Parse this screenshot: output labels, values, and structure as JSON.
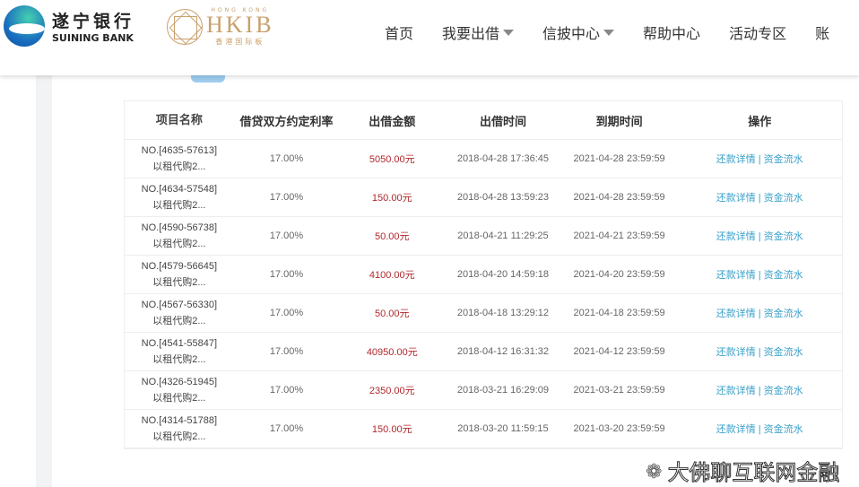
{
  "header": {
    "bank_cn": "遂宁银行",
    "bank_en": "SUINING BANK",
    "hkib_top": "HONG KONG",
    "hkib": "HKIB",
    "hkib_cn": "香港国际板",
    "nav": [
      {
        "label": "首页",
        "dropdown": false
      },
      {
        "label": "我要出借",
        "dropdown": true
      },
      {
        "label": "信披中心",
        "dropdown": true
      },
      {
        "label": "帮助中心",
        "dropdown": false
      },
      {
        "label": "活动专区",
        "dropdown": false
      },
      {
        "label": "账",
        "dropdown": false
      }
    ]
  },
  "table": {
    "columns": [
      "项目名称",
      "借贷双方约定利率",
      "出借金额",
      "出借时间",
      "到期时间",
      "操作"
    ],
    "action_repay": "还款详情",
    "action_separator": "|",
    "action_flow": "资金流水",
    "rows": [
      {
        "id": "NO.[4635-57613]",
        "name": "以租代购2...",
        "rate": "17.00%",
        "amount": "5050.00元",
        "lend_time": "2018-04-28 17:36:45",
        "due_time": "2021-04-28 23:59:59"
      },
      {
        "id": "NO.[4634-57548]",
        "name": "以租代购2...",
        "rate": "17.00%",
        "amount": "150.00元",
        "lend_time": "2018-04-28 13:59:23",
        "due_time": "2021-04-28 23:59:59"
      },
      {
        "id": "NO.[4590-56738]",
        "name": "以租代购2...",
        "rate": "17.00%",
        "amount": "50.00元",
        "lend_time": "2018-04-21 11:29:25",
        "due_time": "2021-04-21 23:59:59"
      },
      {
        "id": "NO.[4579-56645]",
        "name": "以租代购2...",
        "rate": "17.00%",
        "amount": "4100.00元",
        "lend_time": "2018-04-20 14:59:18",
        "due_time": "2021-04-20 23:59:59"
      },
      {
        "id": "NO.[4567-56330]",
        "name": "以租代购2...",
        "rate": "17.00%",
        "amount": "50.00元",
        "lend_time": "2018-04-18 13:29:12",
        "due_time": "2021-04-18 23:59:59"
      },
      {
        "id": "NO.[4541-55847]",
        "name": "以租代购2...",
        "rate": "17.00%",
        "amount": "40950.00元",
        "lend_time": "2018-04-12 16:31:32",
        "due_time": "2021-04-12 23:59:59"
      },
      {
        "id": "NO.[4326-51945]",
        "name": "以租代购2...",
        "rate": "17.00%",
        "amount": "2350.00元",
        "lend_time": "2018-03-21 16:29:09",
        "due_time": "2021-03-21 23:59:59"
      },
      {
        "id": "NO.[4314-51788]",
        "name": "以租代购2...",
        "rate": "17.00%",
        "amount": "150.00元",
        "lend_time": "2018-03-20 11:59:15",
        "due_time": "2021-03-20 23:59:59"
      }
    ]
  },
  "watermark": "大佛聊互联网金融",
  "colors": {
    "amount": "#b0282d",
    "link": "#3aa0c8",
    "accent": "#9fcdf0"
  }
}
